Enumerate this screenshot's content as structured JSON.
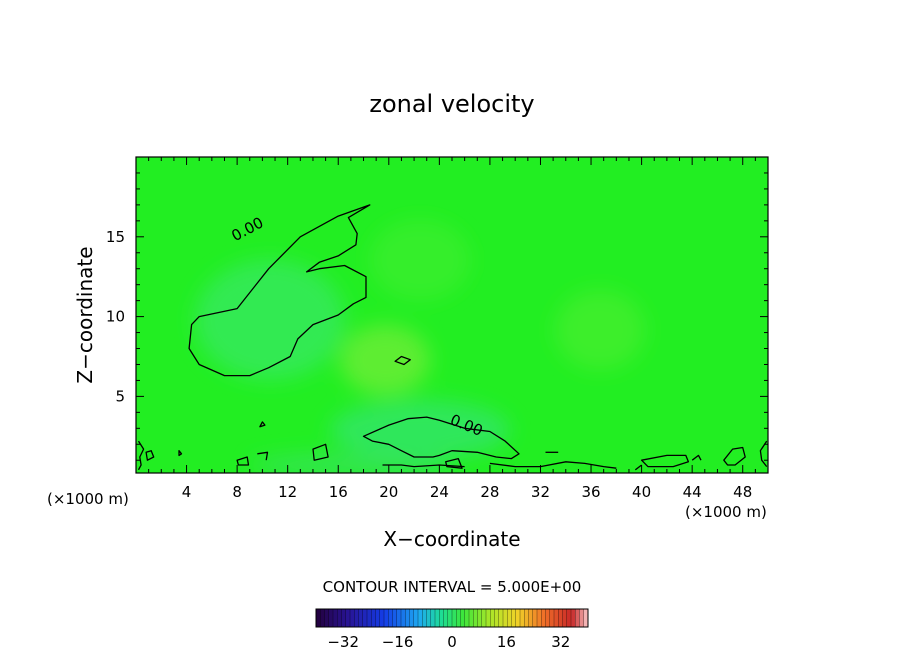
{
  "chart_data": {
    "type": "heatmap",
    "title": "zonal velocity",
    "xlabel": "X−coordinate",
    "ylabel": "Z−coordinate",
    "x_unit_left": "(×1000 m)",
    "x_unit_right": "(×1000 m)",
    "xlim": [
      0,
      50
    ],
    "ylim": [
      0.2,
      20
    ],
    "x_ticks": [
      4,
      8,
      12,
      16,
      20,
      24,
      28,
      32,
      36,
      40,
      44,
      48
    ],
    "y_ticks": [
      5,
      10,
      15
    ],
    "contour_labels": [
      "0.00",
      "0.00"
    ],
    "contour_interval_text": "CONTOUR INTERVAL = 5.000E+00",
    "colorbar": {
      "range": [
        -40,
        40
      ],
      "ticks": [
        -32,
        -16,
        0,
        16,
        32
      ],
      "tick_labels": [
        "−32",
        "−16",
        "0",
        "16",
        "32"
      ]
    },
    "colors": {
      "field_background": "#22ee22",
      "contour_line": "#000000"
    },
    "zero_contours": [
      {
        "points": [
          [
            18.5,
            17
          ],
          [
            16,
            16.3
          ],
          [
            13,
            15
          ],
          [
            10.5,
            13
          ],
          [
            8,
            10.5
          ],
          [
            5,
            10
          ],
          [
            4.4,
            9.5
          ],
          [
            4.2,
            8
          ],
          [
            5,
            7
          ],
          [
            7,
            6.3
          ],
          [
            9,
            6.3
          ],
          [
            10.5,
            6.8
          ],
          [
            12.2,
            7.5
          ],
          [
            12.8,
            8.6
          ],
          [
            14,
            9.5
          ],
          [
            16,
            10.1
          ],
          [
            17.2,
            10.8
          ],
          [
            18.2,
            11.2
          ],
          [
            18.2,
            12.5
          ],
          [
            16.5,
            13.2
          ],
          [
            14.5,
            13
          ],
          [
            13.5,
            12.8
          ],
          [
            14.5,
            13.4
          ],
          [
            16,
            13.8
          ],
          [
            17.4,
            14.5
          ],
          [
            17.5,
            15.2
          ],
          [
            16.8,
            16.2
          ],
          [
            18.5,
            17
          ]
        ],
        "closed": true
      },
      {
        "points": [
          [
            18,
            2.5
          ],
          [
            20,
            3.2
          ],
          [
            21.5,
            3.6
          ],
          [
            23,
            3.7
          ],
          [
            24,
            3.5
          ],
          [
            26,
            3
          ],
          [
            28,
            2.8
          ],
          [
            29.2,
            2.2
          ],
          [
            30.3,
            1.4
          ],
          [
            29.7,
            1.1
          ],
          [
            28.5,
            1.2
          ],
          [
            27,
            1.5
          ],
          [
            25,
            1.6
          ],
          [
            24,
            1.3
          ],
          [
            23.5,
            1.2
          ],
          [
            22,
            1.2
          ],
          [
            21,
            1.6
          ],
          [
            20,
            2
          ],
          [
            18.7,
            2.2
          ],
          [
            18,
            2.5
          ]
        ],
        "closed": true
      },
      {
        "points": [
          [
            20.5,
            7.2
          ],
          [
            21,
            7.5
          ],
          [
            21.7,
            7.3
          ],
          [
            21.2,
            7
          ],
          [
            20.5,
            7.2
          ]
        ],
        "closed": true
      },
      {
        "points": [
          [
            9.8,
            3.1
          ],
          [
            10,
            3.4
          ],
          [
            10.2,
            3.2
          ],
          [
            9.8,
            3.1
          ]
        ],
        "closed": true
      },
      {
        "points": [
          [
            14,
            1.7
          ],
          [
            15,
            2
          ],
          [
            15.2,
            1.2
          ],
          [
            14.1,
            1
          ],
          [
            14,
            1.7
          ]
        ],
        "closed": true
      },
      {
        "points": [
          [
            24.5,
            0.9
          ],
          [
            25.5,
            1.1
          ],
          [
            25.8,
            0.5
          ],
          [
            24.6,
            0.6
          ],
          [
            24.5,
            0.9
          ]
        ],
        "closed": true
      },
      {
        "points": [
          [
            0.2,
            2.2
          ],
          [
            0.6,
            1.7
          ],
          [
            0.3,
            1.2
          ],
          [
            0.4,
            0.7
          ],
          [
            0.2,
            0.4
          ]
        ],
        "closed": false
      },
      {
        "points": [
          [
            0.8,
            1.5
          ],
          [
            1.2,
            1.6
          ],
          [
            1.4,
            1.2
          ],
          [
            0.9,
            1
          ],
          [
            0.8,
            1.5
          ]
        ],
        "closed": true
      },
      {
        "points": [
          [
            3.4,
            1.6
          ],
          [
            3.6,
            1.4
          ],
          [
            3.4,
            1.3
          ],
          [
            3.4,
            1.6
          ]
        ],
        "closed": true
      },
      {
        "points": [
          [
            8,
            1
          ],
          [
            8.8,
            1.2
          ],
          [
            8.9,
            0.7
          ],
          [
            8.1,
            0.7
          ],
          [
            8,
            1
          ]
        ],
        "closed": true
      },
      {
        "points": [
          [
            9.6,
            1.4
          ],
          [
            10.4,
            1.5
          ],
          [
            10.3,
            1
          ]
        ],
        "closed": false
      },
      {
        "points": [
          [
            19.5,
            0.7
          ],
          [
            21,
            0.7
          ],
          [
            22,
            0.6
          ],
          [
            24,
            0.7
          ],
          [
            26,
            0.6
          ]
        ],
        "closed": false
      },
      {
        "points": [
          [
            28,
            0.8
          ],
          [
            30,
            0.6
          ],
          [
            32,
            0.6
          ],
          [
            34,
            0.9
          ],
          [
            35.5,
            0.8
          ],
          [
            37,
            0.6
          ],
          [
            38,
            0.5
          ]
        ],
        "closed": false
      },
      {
        "points": [
          [
            32.4,
            1.5
          ],
          [
            33.4,
            1.5
          ]
        ],
        "closed": false
      },
      {
        "points": [
          [
            40,
            1
          ],
          [
            42,
            1.3
          ],
          [
            43.5,
            1.3
          ],
          [
            43.7,
            0.9
          ],
          [
            42.5,
            0.6
          ],
          [
            40.5,
            0.6
          ],
          [
            40,
            1
          ]
        ],
        "closed": true
      },
      {
        "points": [
          [
            39.5,
            0.4
          ],
          [
            40,
            0.7
          ]
        ],
        "closed": false
      },
      {
        "points": [
          [
            44,
            1
          ],
          [
            44.5,
            1.3
          ],
          [
            44.7,
            1
          ]
        ],
        "closed": false
      },
      {
        "points": [
          [
            46.5,
            1
          ],
          [
            47.2,
            1.7
          ],
          [
            48,
            1.8
          ],
          [
            48.2,
            1.2
          ],
          [
            47.4,
            0.7
          ],
          [
            46.8,
            0.7
          ],
          [
            46.5,
            1
          ]
        ],
        "closed": true
      },
      {
        "points": [
          [
            49.9,
            2.2
          ],
          [
            49.4,
            1.6
          ],
          [
            49.5,
            1
          ],
          [
            49.9,
            0.6
          ]
        ],
        "closed": false
      }
    ]
  }
}
